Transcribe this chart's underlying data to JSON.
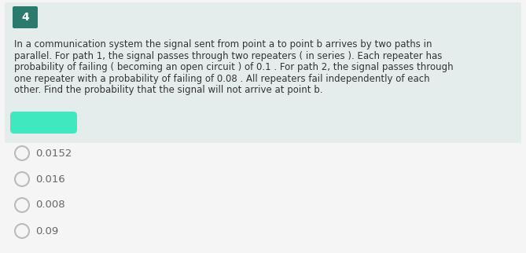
{
  "question_number": "4",
  "question_number_bg": "#2a7a6e",
  "question_number_color": "#ffffff",
  "question_text_lines": [
    "In a communication system the signal sent from point a to point b arrives by two paths in",
    "parallel. For path 1, the signal passes through two repeaters ( in series ). Each repeater has",
    "probability of failing ( becoming an open circuit ) of 0.1 . For path 2, the signal passes through",
    "one repeater with a probability of failing of 0.08 . All repeaters fail independently of each",
    "other. Find the probability that the signal will not arrive at point b."
  ],
  "question_box_bg": "#e4ecec",
  "answer_highlight_color": "#40e8c0",
  "options": [
    "0.0152",
    "0.016",
    "0.008",
    "0.09"
  ],
  "option_text_color": "#666666",
  "background_color": "#f5f5f5",
  "font_size_question": 8.5,
  "font_size_options": 9.5,
  "font_size_number": 10,
  "circle_color": "#bbbbbb"
}
